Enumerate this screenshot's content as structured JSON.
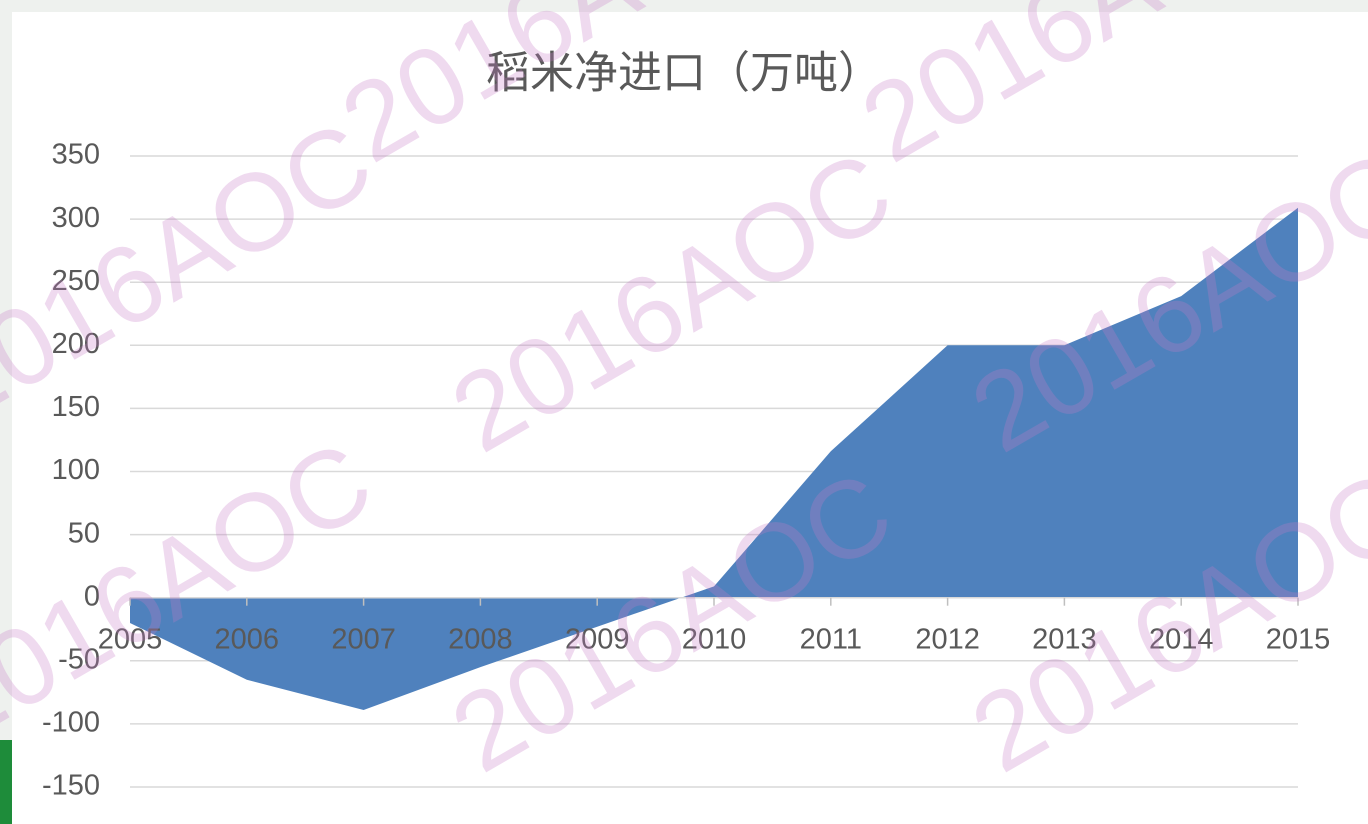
{
  "chart_data": {
    "type": "area",
    "title": "稻米净进口（万吨）",
    "categories": [
      "2005",
      "2006",
      "2007",
      "2008",
      "2009",
      "2010",
      "2011",
      "2012",
      "2013",
      "2014",
      "2015"
    ],
    "values": [
      -20,
      -65,
      -89,
      -55,
      -23,
      9,
      116,
      200,
      200,
      239,
      309
    ],
    "color": "#4f81bd",
    "ylim": [
      -150,
      350
    ],
    "yticks": [
      -150,
      -100,
      -50,
      0,
      50,
      100,
      150,
      200,
      250,
      300,
      350
    ],
    "grid": true,
    "watermark": "2016AOC"
  }
}
